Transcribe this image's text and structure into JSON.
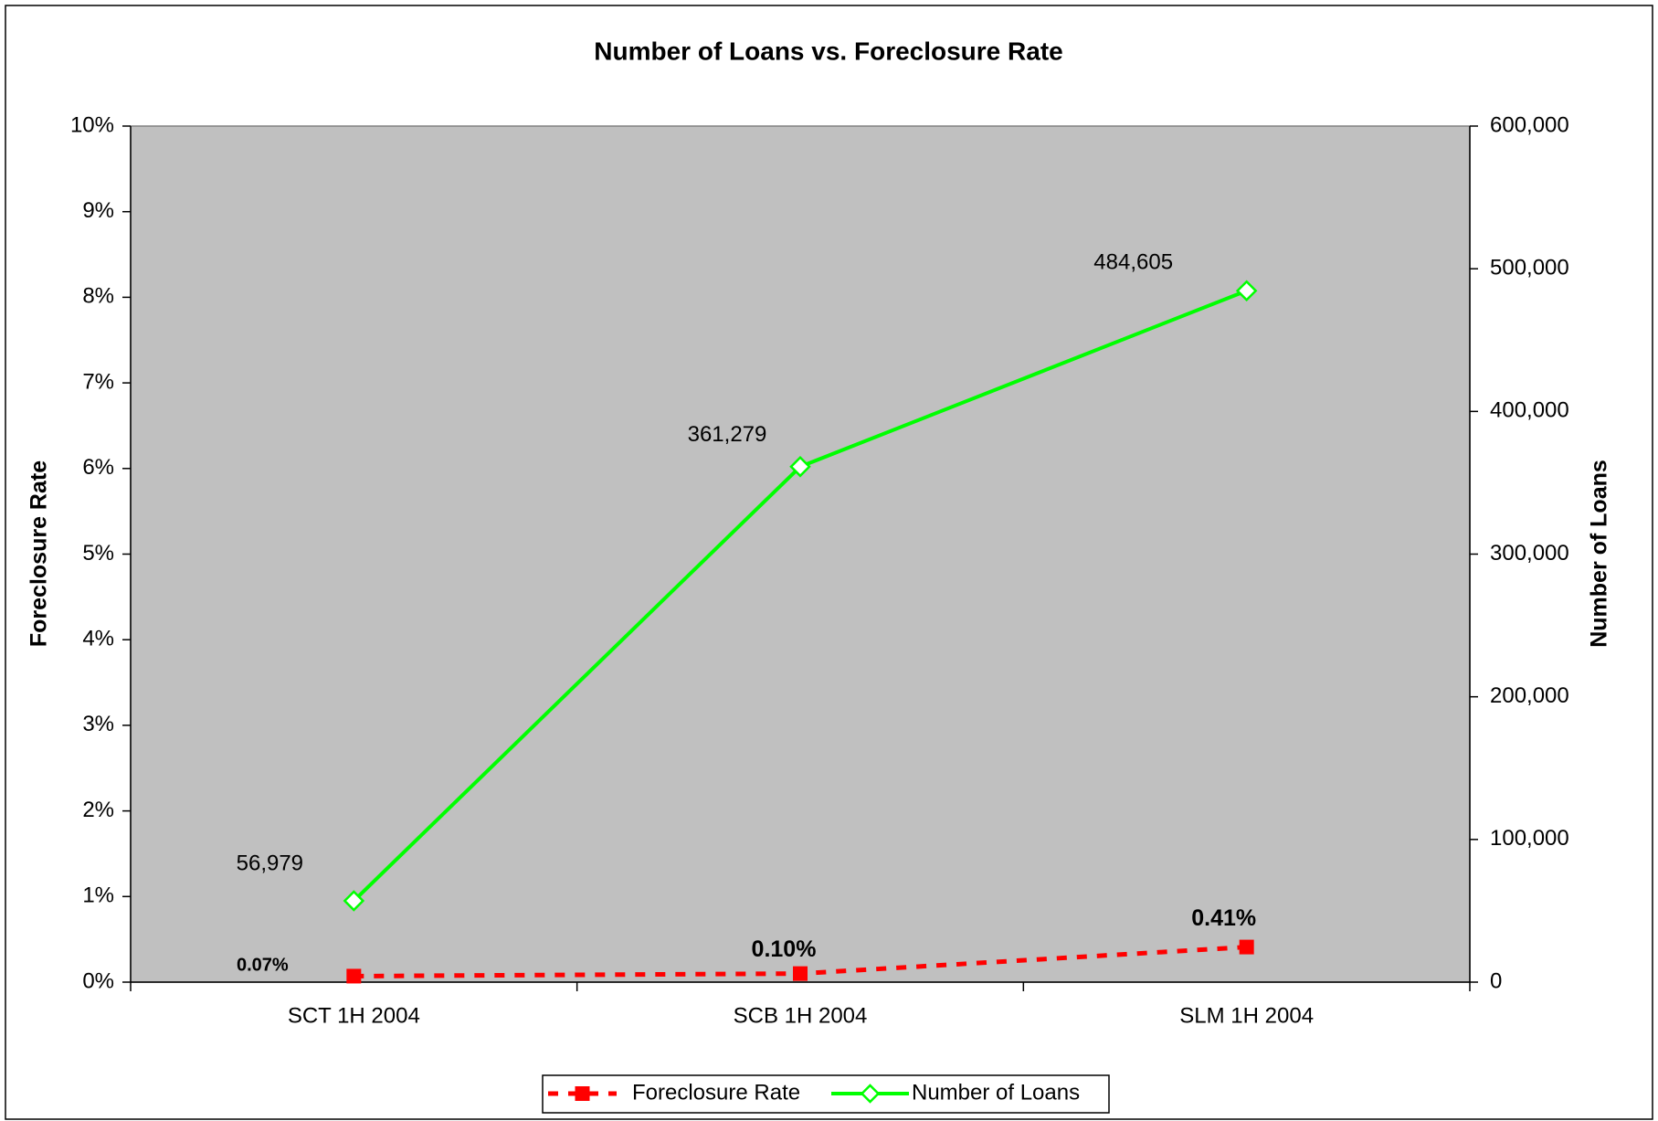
{
  "chart_data": {
    "type": "line",
    "title": "Number of Loans vs. Foreclosure Rate",
    "y_label": "Foreclosure Rate",
    "y2_label": "Number of Loans",
    "categories": [
      "SCT 1H 2004",
      "SCB 1H 2004",
      "SLM 1H 2004"
    ],
    "series": [
      {
        "name": "Foreclosure Rate",
        "color": "#ff0000",
        "axis": "y",
        "values": [
          0.07,
          0.1,
          0.41
        ],
        "value_labels": [
          "0.07%",
          "0.10%",
          "0.41%"
        ]
      },
      {
        "name": "Number of Loans",
        "color": "#00ff00",
        "axis": "y2",
        "values": [
          56979,
          361279,
          484605
        ],
        "value_labels": [
          "56,979",
          "361,279",
          "484,605"
        ]
      }
    ],
    "ylim": [
      0,
      10
    ],
    "yticks": [
      {
        "value": 0,
        "label": "0%"
      },
      {
        "value": 1,
        "label": "1%"
      },
      {
        "value": 2,
        "label": "2%"
      },
      {
        "value": 3,
        "label": "3%"
      },
      {
        "value": 4,
        "label": "4%"
      },
      {
        "value": 5,
        "label": "5%"
      },
      {
        "value": 6,
        "label": "6%"
      },
      {
        "value": 7,
        "label": "7%"
      },
      {
        "value": 8,
        "label": "8%"
      },
      {
        "value": 9,
        "label": "9%"
      },
      {
        "value": 10,
        "label": "10%"
      }
    ],
    "y2lim": [
      0,
      600000
    ],
    "y2ticks": [
      0,
      {
        "value": 100000,
        "label": "100,000"
      },
      {
        "value": 200000,
        "label": "200,000"
      },
      {
        "value": 300000,
        "label": "300,000"
      },
      {
        "value": 400000,
        "label": "400,000"
      },
      {
        "value": 500000,
        "label": "500,000"
      },
      {
        "value": 600000,
        "label": "600,000"
      }
    ],
    "plot_background": "#c0c0c0",
    "legend": "bottom"
  }
}
